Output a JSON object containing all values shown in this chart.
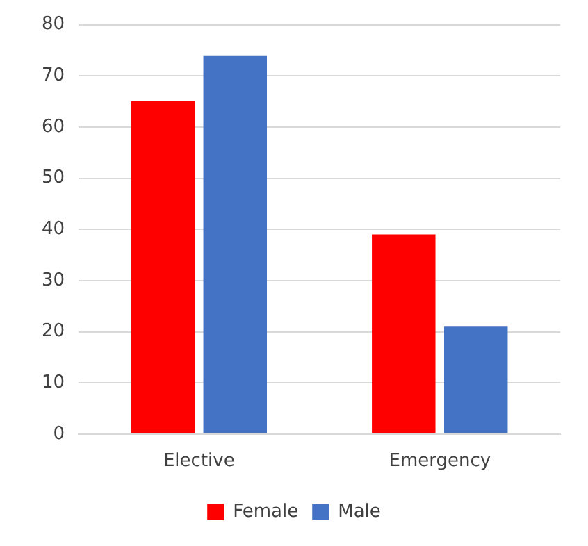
{
  "chart_data": {
    "type": "bar",
    "categories": [
      "Elective",
      "Emergency"
    ],
    "series": [
      {
        "name": "Female",
        "color": "#ff0000",
        "values": [
          65,
          39
        ]
      },
      {
        "name": "Male",
        "color": "#4472c4",
        "values": [
          74,
          21
        ]
      }
    ],
    "ylim": [
      0,
      80
    ],
    "yticks": [
      0,
      10,
      20,
      30,
      40,
      50,
      60,
      70,
      80
    ],
    "grid": "y",
    "legend": "bottom"
  }
}
